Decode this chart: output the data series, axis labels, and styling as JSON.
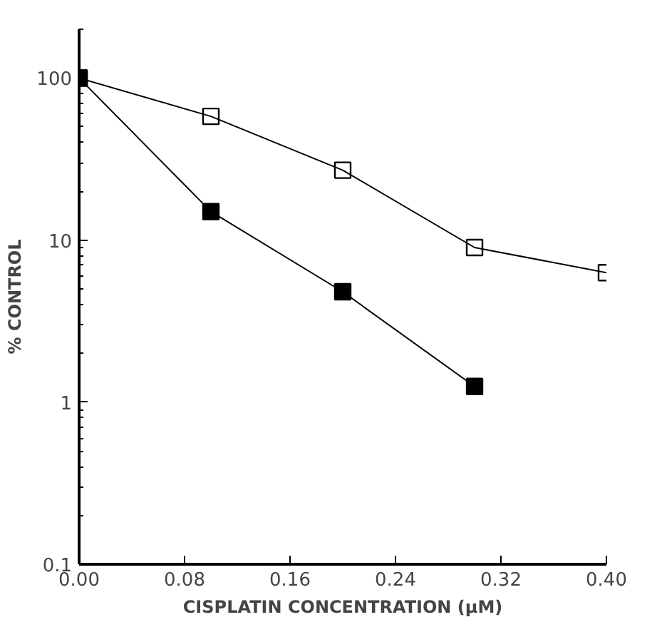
{
  "chart_data": {
    "type": "line",
    "xlabel": "CISPLATIN CONCENTRATION (µM)",
    "ylabel": "% CONTROL",
    "x": [
      0,
      0.1,
      0.2,
      0.3,
      0.4
    ],
    "series": [
      {
        "color": "#000000",
        "marker": "square_open",
        "values": [
          100,
          58,
          27,
          9,
          6.3
        ]
      },
      {
        "color": "#000000",
        "marker": "square",
        "values": [
          100,
          15,
          4.8,
          1.25,
          null
        ]
      }
    ],
    "log": "y",
    "xlim": [
      0,
      0.4
    ],
    "ylim": [
      0.1,
      200
    ],
    "xticks": [
      {
        "value": 0,
        "label": "0.00"
      },
      {
        "value": 0.08,
        "label": "0.08"
      },
      {
        "value": 0.16,
        "label": "0.16"
      },
      {
        "value": 0.24,
        "label": "0.24"
      },
      {
        "value": 0.32,
        "label": "0.32"
      },
      {
        "value": 0.4,
        "label": "0.40"
      }
    ],
    "yticks": [
      0.1,
      1,
      10,
      100
    ],
    "grid": false,
    "line_style": "solid"
  }
}
